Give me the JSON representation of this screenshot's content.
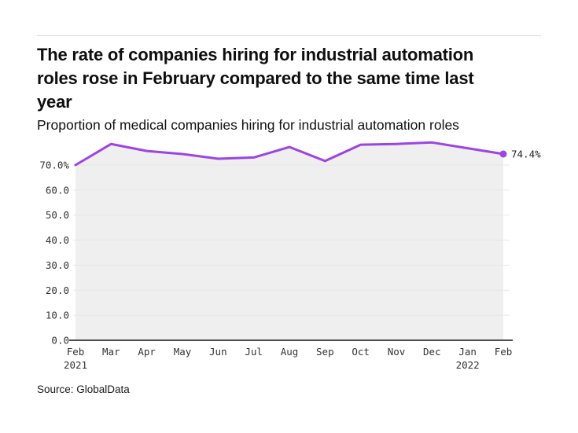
{
  "page": {
    "title_lines": [
      "The rate of companies hiring for industrial automation",
      "roles rose in February compared to the same time last",
      "year"
    ],
    "subtitle": "Proportion of medical companies hiring for industrial automation roles",
    "source": "Source: GlobalData"
  },
  "chart_data": {
    "type": "area",
    "title": "The rate of companies hiring for industrial automation roles rose in February compared to the same time last year",
    "subtitle": "Proportion of medical companies hiring for industrial automation roles",
    "categories": [
      "Feb 2021",
      "Mar",
      "Apr",
      "May",
      "Jun",
      "Jul",
      "Aug",
      "Sep",
      "Oct",
      "Nov",
      "Dec",
      "Jan 2022",
      "Feb"
    ],
    "values": [
      70.0,
      78.4,
      75.6,
      74.4,
      72.5,
      73.0,
      77.2,
      71.6,
      78.1,
      78.4,
      79.0,
      76.7,
      74.4
    ],
    "unit": "%",
    "end_label": "74.4%",
    "y_ticks": [
      0,
      10,
      20,
      30,
      40,
      50,
      60,
      70
    ],
    "y_tick_labels": [
      "0.0",
      "10.0",
      "20.0",
      "30.0",
      "40.0",
      "50.0",
      "60.0",
      "70.0%"
    ],
    "ylim": [
      0,
      80
    ],
    "grid": true,
    "legend": "none",
    "line_color": "#9c44e4",
    "area_color": "#efefef",
    "grid_color": "#e7e7e7",
    "axis_color": "#4d4d4d",
    "tick_color": "#333333",
    "source": "Source: GlobalData"
  }
}
